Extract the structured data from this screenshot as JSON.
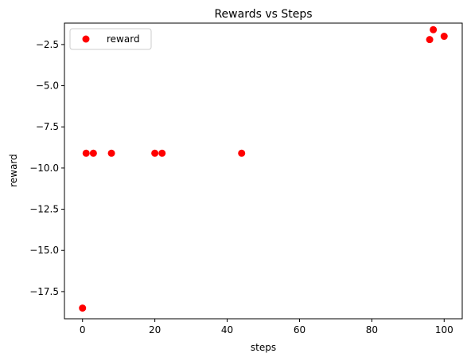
{
  "chart_data": {
    "type": "scatter",
    "title": "Rewards vs Steps",
    "xlabel": "steps",
    "ylabel": "reward",
    "xlim": [
      -5,
      105
    ],
    "ylim": [
      -19.15,
      -1.2
    ],
    "xticks": [
      0,
      20,
      40,
      60,
      80,
      100
    ],
    "yticks": [
      -17.5,
      -15.0,
      -12.5,
      -10.0,
      -7.5,
      -5.0,
      -2.5
    ],
    "xtick_labels": [
      "0",
      "20",
      "40",
      "60",
      "80",
      "100"
    ],
    "ytick_labels": [
      "−17.5",
      "−15.0",
      "−12.5",
      "−10.0",
      "−7.5",
      "−5.0",
      "−2.5"
    ],
    "grid": false,
    "legend_position": "top-left",
    "series": [
      {
        "name": "reward",
        "color": "#ff0000",
        "marker": "circle",
        "points": [
          {
            "x": 0,
            "y": -18.5
          },
          {
            "x": 1,
            "y": -9.1
          },
          {
            "x": 3,
            "y": -9.1
          },
          {
            "x": 8,
            "y": -9.1
          },
          {
            "x": 20,
            "y": -9.1
          },
          {
            "x": 22,
            "y": -9.1
          },
          {
            "x": 44,
            "y": -9.1
          },
          {
            "x": 96,
            "y": -2.2
          },
          {
            "x": 97,
            "y": -1.6
          },
          {
            "x": 100,
            "y": -2.0
          }
        ]
      }
    ]
  }
}
